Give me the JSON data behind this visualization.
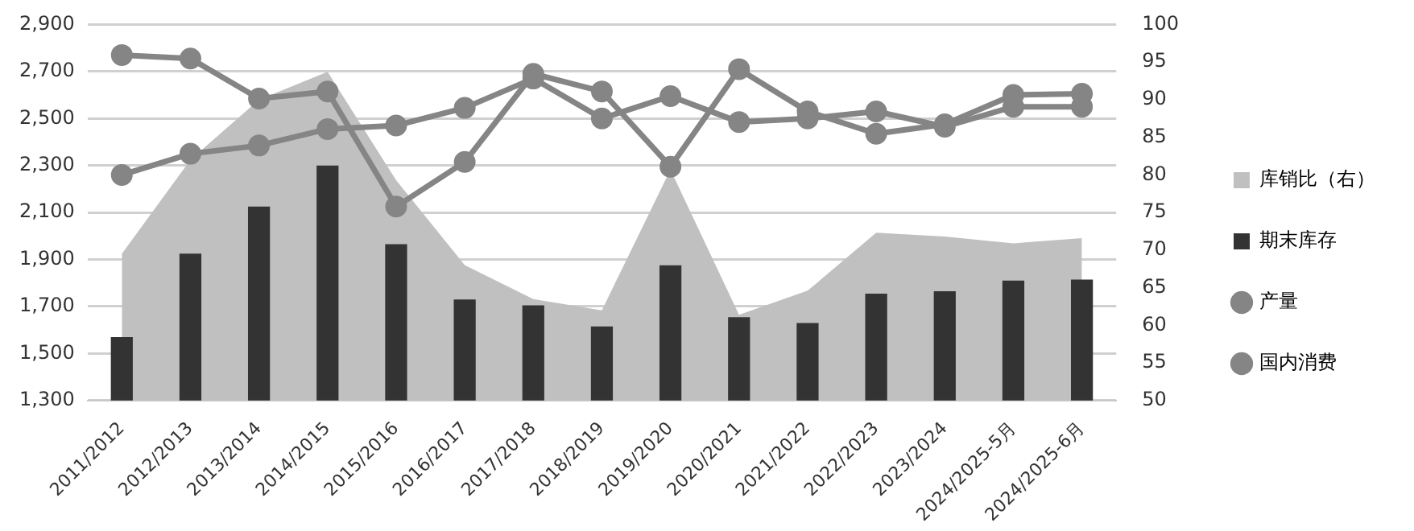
{
  "chart_data": {
    "type": "bar",
    "categories": [
      "2011/2012",
      "2012/2013",
      "2013/2014",
      "2014/2015",
      "2015/2016",
      "2016/2017",
      "2017/2018",
      "2018/2019",
      "2019/2020",
      "2020/2021",
      "2021/2022",
      "2022/2023",
      "2023/2024",
      "2024/2025-5月",
      "2024/2025-6月"
    ],
    "series": [
      {
        "name": "库销比（右）",
        "type": "area",
        "axis": "y2",
        "color": "#c0c0c0",
        "values": [
          69.5,
          82,
          90,
          93.7,
          79.3,
          68,
          63.5,
          62,
          80.7,
          61.4,
          64.6,
          72.3,
          71.8,
          70.9,
          71.6
        ]
      },
      {
        "name": "期末库存",
        "color": "#333333",
        "values": [
          1570,
          1925,
          2125,
          2300,
          1965,
          1730,
          1705,
          1615,
          1875,
          1655,
          1630,
          1755,
          1765,
          1810,
          1815
        ]
      },
      {
        "name": "产量",
        "type": "line",
        "marker": "circle",
        "color": "#858585",
        "values": [
          2770,
          2755,
          2585,
          2615,
          2125,
          2315,
          2690,
          2615,
          2295,
          2710,
          2530,
          2435,
          2475,
          2600,
          2605
        ]
      },
      {
        "name": "国内消费",
        "type": "line",
        "marker": "circle",
        "color": "#858585",
        "values": [
          2260,
          2350,
          2385,
          2455,
          2470,
          2545,
          2670,
          2500,
          2595,
          2485,
          2500,
          2530,
          2465,
          2550,
          2550
        ]
      }
    ],
    "ylim": [
      1300,
      2900
    ],
    "yticks": [
      {
        "value": 1300,
        "label": "1,300"
      },
      {
        "value": 1500,
        "label": "1,500"
      },
      {
        "value": 1700,
        "label": "1,700"
      },
      {
        "value": 1900,
        "label": "1,900"
      },
      {
        "value": 2100,
        "label": "2,100"
      },
      {
        "value": 2300,
        "label": "2,300"
      },
      {
        "value": 2500,
        "label": "2,500"
      },
      {
        "value": 2700,
        "label": "2,700"
      },
      {
        "value": 2900,
        "label": "2,900"
      }
    ],
    "y2lim": [
      50,
      100
    ],
    "y2ticks": [
      50,
      55,
      60,
      65,
      70,
      75,
      80,
      85,
      90,
      95,
      100
    ],
    "grid": "y",
    "legend": "right",
    "line_style": "solid"
  }
}
